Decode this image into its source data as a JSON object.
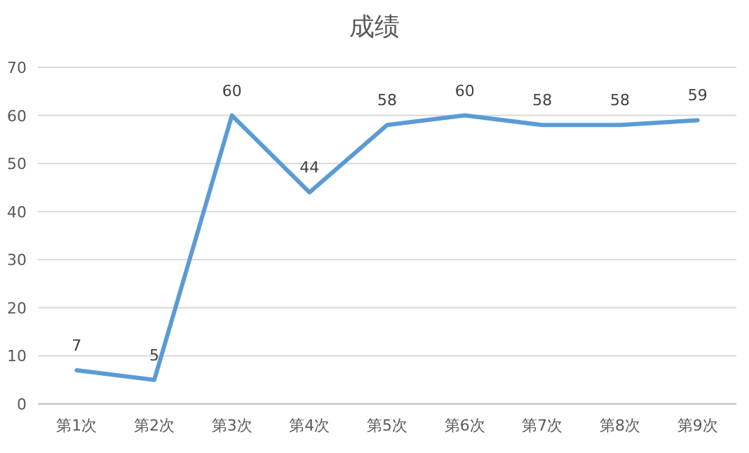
{
  "chart_data": {
    "type": "line",
    "title": "成绩",
    "categories": [
      "第1次",
      "第2次",
      "第3次",
      "第4次",
      "第5次",
      "第6次",
      "第7次",
      "第8次",
      "第9次"
    ],
    "values": [
      7,
      5,
      60,
      44,
      58,
      60,
      58,
      58,
      59
    ],
    "color": "#5b9bd5",
    "ylim": [
      0,
      70
    ],
    "yticks": [
      0,
      10,
      20,
      30,
      40,
      50,
      60,
      70
    ],
    "grid": "y",
    "data_labels": true
  }
}
